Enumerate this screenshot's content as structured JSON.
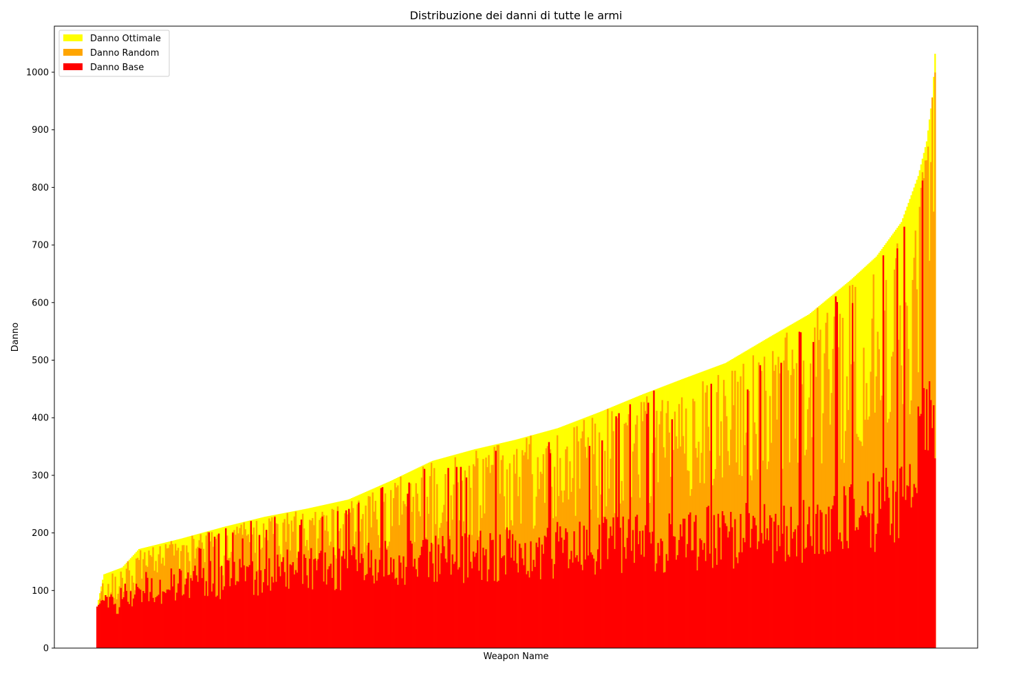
{
  "chart_data": {
    "type": "bar",
    "stacked": true,
    "title": "Distribuzione dei danni di tutte le armi",
    "xlabel": "Weapon Name",
    "ylabel": "Danno",
    "ylim": [
      0,
      1080
    ],
    "yticks": [
      0,
      100,
      200,
      300,
      400,
      500,
      600,
      700,
      800,
      900,
      1000
    ],
    "x_tick_labels_shown": false,
    "legend_position": "top-left",
    "bar_count": 600,
    "series": [
      {
        "name": "Danno Ottimale",
        "color": "#ffff00",
        "description": "total damage per weapon (top of stack), sorted ascending",
        "profile_points": [
          [
            0,
            72
          ],
          [
            0.004,
            100
          ],
          [
            0.008,
            128
          ],
          [
            0.03,
            140
          ],
          [
            0.05,
            172
          ],
          [
            0.1,
            190
          ],
          [
            0.15,
            210
          ],
          [
            0.2,
            228
          ],
          [
            0.25,
            242
          ],
          [
            0.3,
            258
          ],
          [
            0.35,
            290
          ],
          [
            0.4,
            325
          ],
          [
            0.45,
            345
          ],
          [
            0.5,
            362
          ],
          [
            0.55,
            382
          ],
          [
            0.6,
            410
          ],
          [
            0.65,
            440
          ],
          [
            0.7,
            468
          ],
          [
            0.75,
            495
          ],
          [
            0.8,
            538
          ],
          [
            0.85,
            580
          ],
          [
            0.9,
            640
          ],
          [
            0.93,
            680
          ],
          [
            0.96,
            740
          ],
          [
            0.98,
            820
          ],
          [
            0.99,
            880
          ],
          [
            0.997,
            960
          ],
          [
            1.0,
            1032
          ]
        ]
      },
      {
        "name": "Danno Random",
        "color": "#ffa500",
        "description": "mid damage per weapon (middle of stack)",
        "base_profile_points": [
          [
            0,
            72
          ],
          [
            0.05,
            140
          ],
          [
            0.2,
            180
          ],
          [
            0.4,
            240
          ],
          [
            0.6,
            300
          ],
          [
            0.8,
            390
          ],
          [
            0.9,
            430
          ],
          [
            0.97,
            520
          ],
          [
            1.0,
            830
          ]
        ]
      },
      {
        "name": "Danno Base",
        "color": "#ff0000",
        "description": "base damage per weapon (bottom of stack)",
        "base_profile_points": [
          [
            0,
            72
          ],
          [
            0.05,
            110
          ],
          [
            0.2,
            140
          ],
          [
            0.4,
            165
          ],
          [
            0.6,
            190
          ],
          [
            0.8,
            215
          ],
          [
            0.9,
            240
          ],
          [
            0.97,
            280
          ],
          [
            1.0,
            500
          ]
        ]
      }
    ]
  }
}
